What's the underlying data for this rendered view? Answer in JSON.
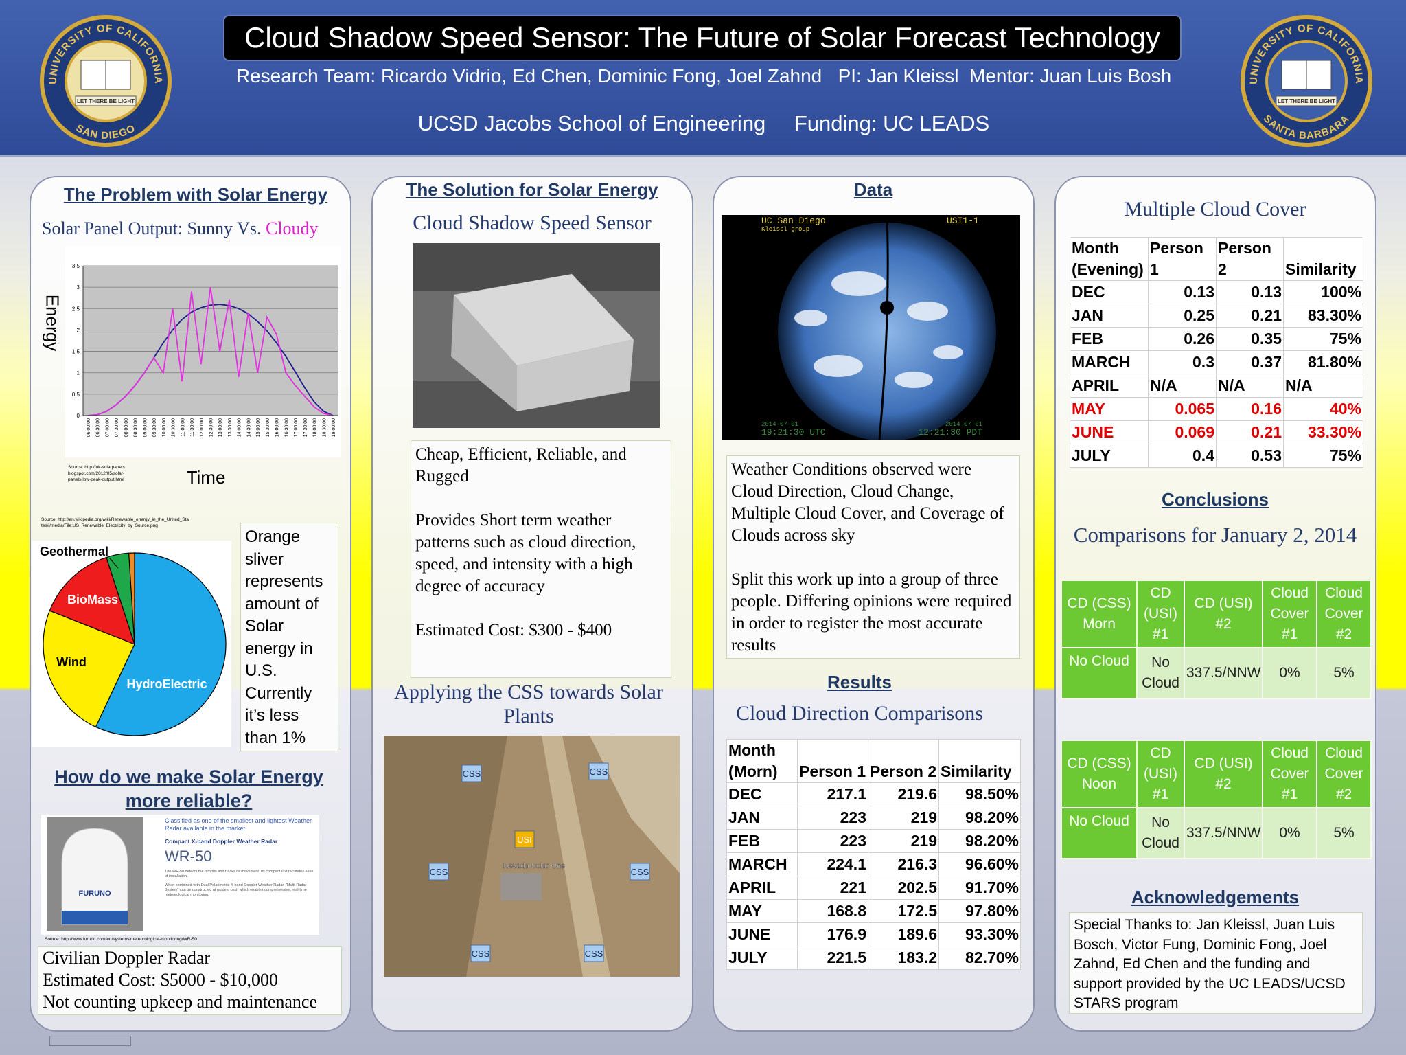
{
  "header": {
    "title": "Cloud Shadow Speed Sensor: The Future of Solar Forecast Technology",
    "team": "Research Team: Ricardo Vidrio, Ed Chen, Dominic Fong, Joel Zahnd   PI: Jan Kleissl  Mentor: Juan Luis Bosh",
    "school": "UCSD Jacobs School of Engineering",
    "funding": "Funding: UC LEADS",
    "logos": [
      {
        "ring_top": "UNIVERSITY OF CALIFORNIA",
        "ring_bottom": "SAN DIEGO",
        "motto": "LET THERE BE LIGHT"
      },
      {
        "ring_top": "UNIVERSITY OF CALIFORNIA",
        "ring_bottom": "SANTA BARBARA",
        "motto": "LET THERE BE LIGHT"
      }
    ]
  },
  "chart_data": [
    {
      "type": "line",
      "y_label": "Energy",
      "x_label": "Time",
      "categories": [
        "06:00:00",
        "06:30:00",
        "07:00:00",
        "07:30:00",
        "08:00:00",
        "08:30:00",
        "09:00:00",
        "09:30:00",
        "10:00:00",
        "10:30:00",
        "11:00:00",
        "11:30:00",
        "12:00:00",
        "12:30:00",
        "13:00:00",
        "13:30:00",
        "14:00:00",
        "14:30:00",
        "15:00:00",
        "15:30:00",
        "16:00:00",
        "16:30:00",
        "17:00:00",
        "17:30:00",
        "18:00:00",
        "18:30:00",
        "19:00:00"
      ],
      "series": [
        {
          "color": "#1c1c8c",
          "values": [
            0,
            0.02,
            0.1,
            0.25,
            0.45,
            0.7,
            1.0,
            1.35,
            1.7,
            2.0,
            2.25,
            2.42,
            2.52,
            2.58,
            2.6,
            2.57,
            2.5,
            2.38,
            2.2,
            1.98,
            1.7,
            1.38,
            1.02,
            0.65,
            0.32,
            0.1,
            0
          ]
        },
        {
          "color": "#e030e0",
          "values": [
            0,
            0.02,
            0.1,
            0.25,
            0.45,
            0.7,
            1.0,
            1.35,
            1.0,
            2.5,
            0.8,
            2.9,
            1.2,
            3.0,
            1.5,
            2.7,
            0.9,
            2.4,
            1.0,
            2.3,
            1.9,
            1.0,
            0.7,
            0.45,
            0.2,
            0.05,
            0
          ]
        }
      ],
      "ylim": [
        0,
        3.5
      ],
      "yticks": [
        0,
        0.5,
        1,
        1.5,
        2,
        2.5,
        3,
        3.5
      ],
      "grid": true
    },
    {
      "type": "pie",
      "categories": [
        "HydroElectric",
        "Wind",
        "BioMass",
        "Geothermal",
        null
      ],
      "values": [
        57,
        24,
        14,
        4,
        1
      ],
      "colors": [
        "#1ea8ea",
        "#ffee00",
        "#ee1c1c",
        "#1fa84a",
        "#f08a24"
      ]
    }
  ],
  "problem": {
    "heading": "The Problem with Solar Energy",
    "subtitle": "Solar Panel Output: Sunny Vs.",
    "subtitle_highlight": "Cloudy",
    "chart_source": "Source: http://uk-solarpanels.blogspot.com/2012/05/solar-panels-low-peak-output.html",
    "pie_source": "Source: http://en.wikipedia.org/wiki/Renewable_energy_in_the_United_States#/media/File:US_Renewable_Electricity_by_Source.png",
    "pie_note": "Orange sliver represents amount of Solar energy in U.S. Currently it’s less than 1%"
  },
  "reliability": {
    "heading": "How do we make Solar Energy more reliable?",
    "ad": {
      "tagline": "Classified as one of the smallest and lightest Weather Radar available in the market",
      "kicker": "Compact X-band Doppler Weather Radar",
      "model": "WR-50",
      "brand": "FURUNO",
      "body": [
        "The WR-50 detects the nimbus and tracks its movement. Its compact unit facilitates ease of installation.",
        "When combined with Dual Polarimetric X-band Doppler Weather Radar, \"Multi-Radar System\" can be constructed at modest cost, which enables comprehensive, real-time meteorological monitoring."
      ]
    },
    "source": "Source: http://www.furuno.com/en/systems/meteorological-monitoring/WR-50",
    "note": [
      "Civilian Doppler Radar",
      "Estimated Cost: $5000 - $10,000",
      "Not counting upkeep and maintenance"
    ]
  },
  "solution": {
    "heading": "The Solution for Solar Energy",
    "subtitle": "Cloud Shadow Speed Sensor",
    "description": [
      "Cheap, Efficient, Reliable, and Rugged",
      "Provides Short term weather patterns such as cloud direction, speed,  and intensity with a high degree of accuracy",
      "Estimated Cost: $300 - $400"
    ],
    "application": "Applying the CSS towards Solar Plants",
    "map_labels": [
      "CSS",
      "CSS",
      "USI",
      "CSS",
      "CSS",
      "CSS",
      "CSS"
    ],
    "map_plant": "Nevada Solar One"
  },
  "data": {
    "heading": "Data",
    "sky_image": {
      "site": "UC San Diego",
      "group": "Kleissl group",
      "camera": "USI1-1",
      "date_utc": "2014-07-01",
      "time_utc": "19:21:30 UTC",
      "date_local": "2014-07-01",
      "time_local": "12:21:30 PDT"
    },
    "observations": [
      "Weather Conditions observed were Cloud Direction, Cloud Change, Multiple Cloud Cover, and Coverage of Clouds across sky",
      "Split this work up into a group of three people. Differing opinions were required in order to register the most accurate results"
    ]
  },
  "results": {
    "heading": "Results",
    "subtitle": "Cloud Direction Comparisons",
    "table": {
      "header": [
        "Month (Morn)",
        "Person 1",
        "Person 2",
        "Similarity"
      ],
      "rows": [
        [
          "DEC",
          "217.1",
          "219.6",
          "98.50%"
        ],
        [
          "JAN",
          "223",
          "219",
          "98.20%"
        ],
        [
          "FEB",
          "223",
          "219",
          "98.20%"
        ],
        [
          "MARCH",
          "224.1",
          "216.3",
          "96.60%"
        ],
        [
          "APRIL",
          "221",
          "202.5",
          "91.70%"
        ],
        [
          "MAY",
          "168.8",
          "172.5",
          "97.80%"
        ],
        [
          "JUNE",
          "176.9",
          "189.6",
          "93.30%"
        ],
        [
          "JULY",
          "221.5",
          "183.2",
          "82.70%"
        ]
      ]
    }
  },
  "multiple_cloud_cover": {
    "title": "Multiple Cloud Cover",
    "table": {
      "header": [
        "Month (Evening)",
        "Person 1",
        "Person 2",
        "Similarity"
      ],
      "rows": [
        {
          "cells": [
            "DEC",
            "0.13",
            "0.13",
            "100%"
          ]
        },
        {
          "cells": [
            "JAN",
            "0.25",
            "0.21",
            "83.30%"
          ]
        },
        {
          "cells": [
            "FEB",
            "0.26",
            "0.35",
            "75%"
          ]
        },
        {
          "cells": [
            "MARCH",
            "0.3",
            "0.37",
            "81.80%"
          ]
        },
        {
          "cells": [
            "APRIL",
            "N/A",
            "N/A",
            "N/A"
          ]
        },
        {
          "cells": [
            "MAY",
            "0.065",
            "0.16",
            "40%"
          ],
          "color": "#e00000"
        },
        {
          "cells": [
            "JUNE",
            "0.069",
            "0.21",
            "33.30%"
          ],
          "color": "#e00000"
        },
        {
          "cells": [
            "JULY",
            "0.4",
            "0.53",
            "75%"
          ]
        }
      ]
    }
  },
  "conclusions": {
    "heading": "Conclusions",
    "subtitle": "Comparisons for January 2, 2014",
    "tables": [
      {
        "header": [
          "CD (CSS) Morn",
          "CD (USI) #1",
          "CD (USI) #2",
          "Cloud Cover #1",
          "Cloud Cover #2"
        ],
        "rows": [
          [
            "No Cloud",
            "No Cloud",
            "337.5/NNW",
            "0%",
            "5%"
          ]
        ]
      },
      {
        "header": [
          "CD (CSS) Noon",
          "CD (USI) #1",
          "CD (USI) #2",
          "Cloud Cover #1",
          "Cloud Cover #2"
        ],
        "rows": [
          [
            "No Cloud",
            "No Cloud",
            "337.5/NNW",
            "0%",
            "5%"
          ]
        ]
      }
    ]
  },
  "acknowledgements": {
    "heading": "Acknowledgements",
    "text": "Special Thanks to: Jan Kleissl, Juan Luis Bosch, Victor Fung, Dominic Fong, Joel Zahnd, Ed Chen and the funding and support provided by the UC LEADS/UCSD STARS program"
  }
}
